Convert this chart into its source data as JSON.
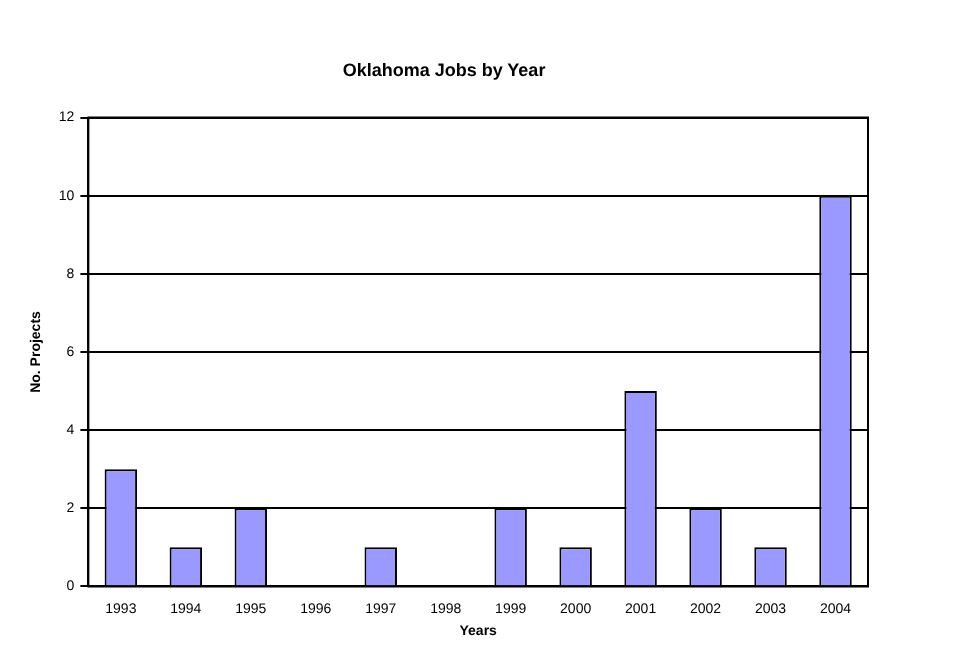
{
  "chart_data": {
    "type": "bar",
    "title": "Oklahoma Jobs by Year",
    "xlabel": "Years",
    "ylabel": "No. Projects",
    "categories": [
      "1993",
      "1994",
      "1995",
      "1996",
      "1997",
      "1998",
      "1999",
      "2000",
      "2001",
      "2002",
      "2003",
      "2004"
    ],
    "values": [
      3,
      1,
      2,
      0,
      1,
      0,
      2,
      1,
      5,
      2,
      1,
      10
    ],
    "color": "#9999ff",
    "ylim": [
      0,
      12
    ],
    "yticks": [
      0,
      2,
      4,
      6,
      8,
      10,
      12
    ],
    "grid": "y",
    "legend": false
  }
}
